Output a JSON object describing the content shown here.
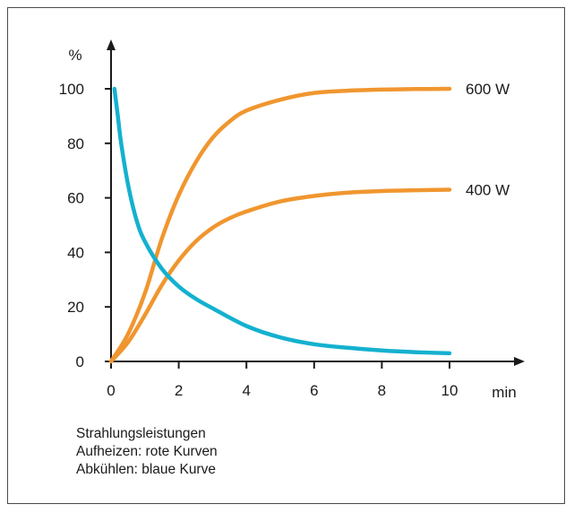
{
  "chart_data": {
    "type": "line",
    "ylabel": "%",
    "xlabel": "min",
    "xlim": [
      0,
      10
    ],
    "ylim": [
      0,
      100
    ],
    "x_ticks": [
      0,
      2,
      4,
      6,
      8,
      10
    ],
    "y_ticks": [
      0,
      20,
      40,
      60,
      80,
      100
    ],
    "grid": false,
    "colors": {
      "heating": "#f0962f",
      "cooling": "#14b1cf",
      "axis": "#1a1a1a"
    },
    "series": [
      {
        "name": "600 W",
        "color": "#f0962f",
        "x": [
          0,
          0.5,
          1,
          1.5,
          2,
          2.5,
          3,
          3.5,
          4,
          5,
          6,
          7,
          8,
          9,
          10
        ],
        "y": [
          0,
          10,
          25,
          45,
          61,
          73,
          82,
          88,
          92,
          96,
          98.5,
          99.3,
          99.7,
          99.9,
          100
        ]
      },
      {
        "name": "400 W",
        "color": "#f0962f",
        "x": [
          0,
          0.5,
          1,
          1.5,
          2,
          2.5,
          3,
          3.5,
          4,
          5,
          6,
          7,
          8,
          9,
          10
        ],
        "y": [
          0,
          7,
          17,
          28,
          37,
          44,
          49,
          52.5,
          55,
          58.7,
          60.7,
          61.9,
          62.5,
          62.8,
          63
        ]
      },
      {
        "color": "#14b1cf",
        "x": [
          0.1,
          0.2,
          0.3,
          0.5,
          0.75,
          1,
          1.5,
          2,
          2.5,
          3,
          4,
          5,
          6,
          7,
          8,
          9,
          10
        ],
        "y": [
          100,
          90,
          80,
          65,
          52,
          44,
          34,
          27.5,
          23,
          19.5,
          13,
          8.8,
          6.3,
          5,
          4,
          3.4,
          3
        ]
      }
    ]
  },
  "caption": {
    "line1": "Strahlungsleistungen",
    "line2": "Aufheizen: rote Kurven",
    "line3": "Abkühlen: blaue Kurve"
  }
}
